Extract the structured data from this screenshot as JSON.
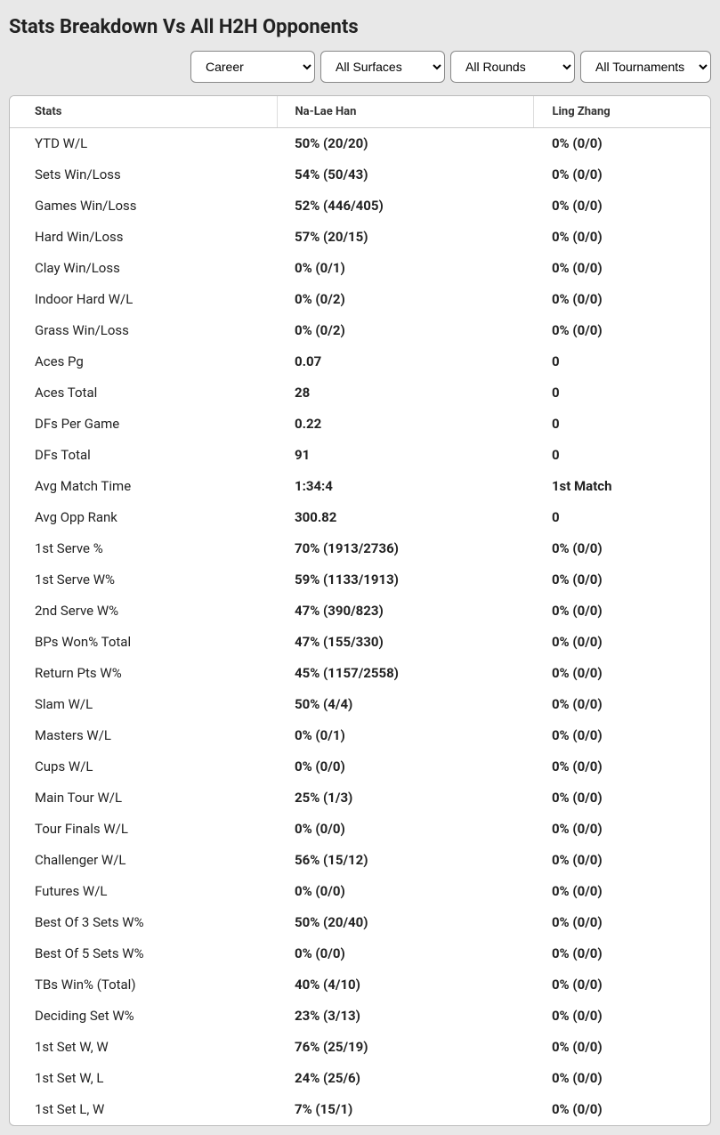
{
  "title": "Stats Breakdown Vs All H2H Opponents",
  "filters": {
    "period": "Career",
    "surface": "All Surfaces",
    "round": "All Rounds",
    "tournament": "All Tournaments"
  },
  "table": {
    "columns": [
      "Stats",
      "Na-Lae Han",
      "Ling Zhang"
    ],
    "rows": [
      [
        "YTD W/L",
        "50% (20/20)",
        "0% (0/0)"
      ],
      [
        "Sets Win/Loss",
        "54% (50/43)",
        "0% (0/0)"
      ],
      [
        "Games Win/Loss",
        "52% (446/405)",
        "0% (0/0)"
      ],
      [
        "Hard Win/Loss",
        "57% (20/15)",
        "0% (0/0)"
      ],
      [
        "Clay Win/Loss",
        "0% (0/1)",
        "0% (0/0)"
      ],
      [
        "Indoor Hard W/L",
        "0% (0/2)",
        "0% (0/0)"
      ],
      [
        "Grass Win/Loss",
        "0% (0/2)",
        "0% (0/0)"
      ],
      [
        "Aces Pg",
        "0.07",
        "0"
      ],
      [
        "Aces Total",
        "28",
        "0"
      ],
      [
        "DFs Per Game",
        "0.22",
        "0"
      ],
      [
        "DFs Total",
        "91",
        "0"
      ],
      [
        "Avg Match Time",
        "1:34:4",
        "1st Match"
      ],
      [
        "Avg Opp Rank",
        "300.82",
        "0"
      ],
      [
        "1st Serve %",
        "70% (1913/2736)",
        "0% (0/0)"
      ],
      [
        "1st Serve W%",
        "59% (1133/1913)",
        "0% (0/0)"
      ],
      [
        "2nd Serve W%",
        "47% (390/823)",
        "0% (0/0)"
      ],
      [
        "BPs Won% Total",
        "47% (155/330)",
        "0% (0/0)"
      ],
      [
        "Return Pts W%",
        "45% (1157/2558)",
        "0% (0/0)"
      ],
      [
        "Slam W/L",
        "50% (4/4)",
        "0% (0/0)"
      ],
      [
        "Masters W/L",
        "0% (0/1)",
        "0% (0/0)"
      ],
      [
        "Cups W/L",
        "0% (0/0)",
        "0% (0/0)"
      ],
      [
        "Main Tour W/L",
        "25% (1/3)",
        "0% (0/0)"
      ],
      [
        "Tour Finals W/L",
        "0% (0/0)",
        "0% (0/0)"
      ],
      [
        "Challenger W/L",
        "56% (15/12)",
        "0% (0/0)"
      ],
      [
        "Futures W/L",
        "0% (0/0)",
        "0% (0/0)"
      ],
      [
        "Best Of 3 Sets W%",
        "50% (20/40)",
        "0% (0/0)"
      ],
      [
        "Best Of 5 Sets W%",
        "0% (0/0)",
        "0% (0/0)"
      ],
      [
        "TBs Win% (Total)",
        "40% (4/10)",
        "0% (0/0)"
      ],
      [
        "Deciding Set W%",
        "23% (3/13)",
        "0% (0/0)"
      ],
      [
        "1st Set W, W",
        "76% (25/19)",
        "0% (0/0)"
      ],
      [
        "1st Set W, L",
        "24% (25/6)",
        "0% (0/0)"
      ],
      [
        "1st Set L, W",
        "7% (15/1)",
        "0% (0/0)"
      ]
    ],
    "col_widths": [
      "300px",
      "auto",
      "auto"
    ],
    "header_bg": "#ffffff",
    "header_border": "#cccccc",
    "row_font_size": 15,
    "header_font_size": 13,
    "label_weight": 400,
    "value_weight": 700,
    "text_color": "#222222",
    "background_color": "#ffffff",
    "outer_border_color": "#bbbbbb",
    "page_bg": "#e8e8e8"
  }
}
